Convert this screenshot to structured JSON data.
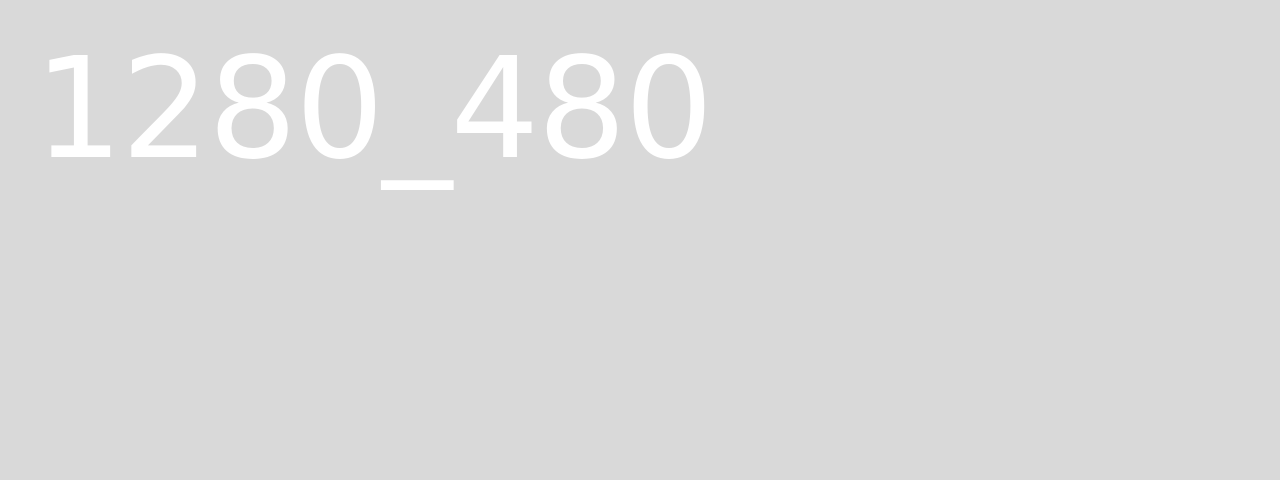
{
  "placeholder": {
    "label": "1280_480",
    "background_color": "#d9d9d9",
    "text_color": "#ffffff"
  }
}
